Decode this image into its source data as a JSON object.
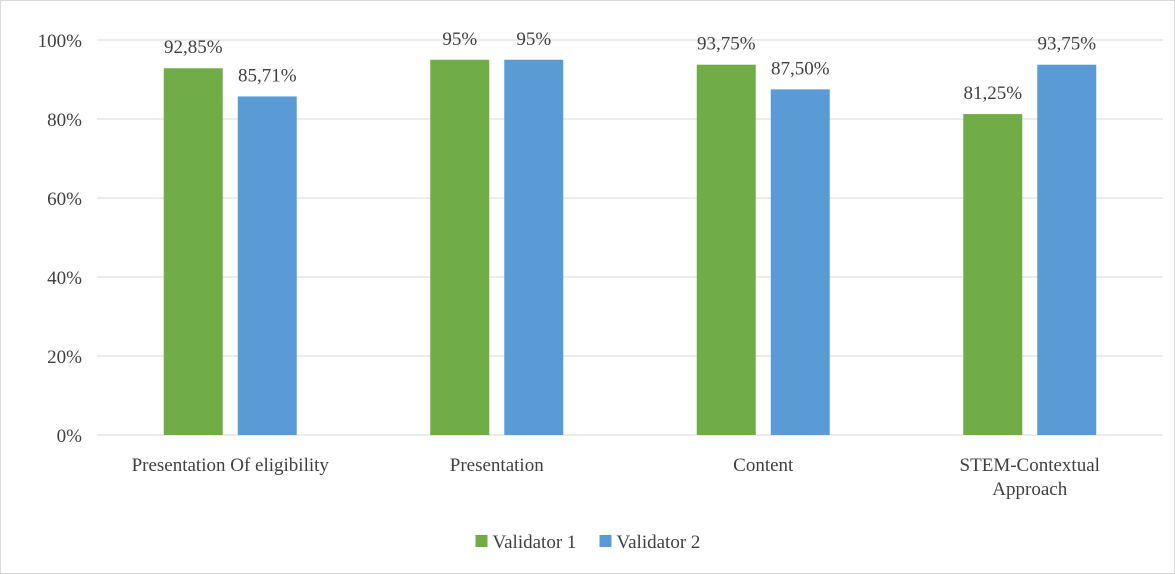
{
  "chart_data": {
    "type": "bar",
    "title": "",
    "xlabel": "",
    "ylabel": "",
    "categories": [
      "Presentation Of eligibility",
      "Presentation",
      "Content",
      "STEM-Contextual Approach"
    ],
    "category_lines": [
      [
        "Presentation Of eligibility"
      ],
      [
        "Presentation"
      ],
      [
        "Content"
      ],
      [
        "STEM-Contextual",
        "Approach"
      ]
    ],
    "series": [
      {
        "name": "Validator 1",
        "color": "#70ad47",
        "values": [
          92.85,
          95,
          93.75,
          81.25
        ],
        "labels": [
          "92,85%",
          "95%",
          "93,75%",
          "81,25%"
        ]
      },
      {
        "name": "Validator 2",
        "color": "#5b9bd5",
        "values": [
          85.71,
          95,
          87.5,
          93.75
        ],
        "labels": [
          "85,71%",
          "95%",
          "87,50%",
          "93,75%"
        ]
      }
    ],
    "ylim": [
      0,
      100
    ],
    "yticks": [
      0,
      20,
      40,
      60,
      80,
      100
    ],
    "ytick_labels": [
      "0%",
      "20%",
      "40%",
      "60%",
      "80%",
      "100%"
    ],
    "grid": true,
    "legend_position": "bottom"
  }
}
